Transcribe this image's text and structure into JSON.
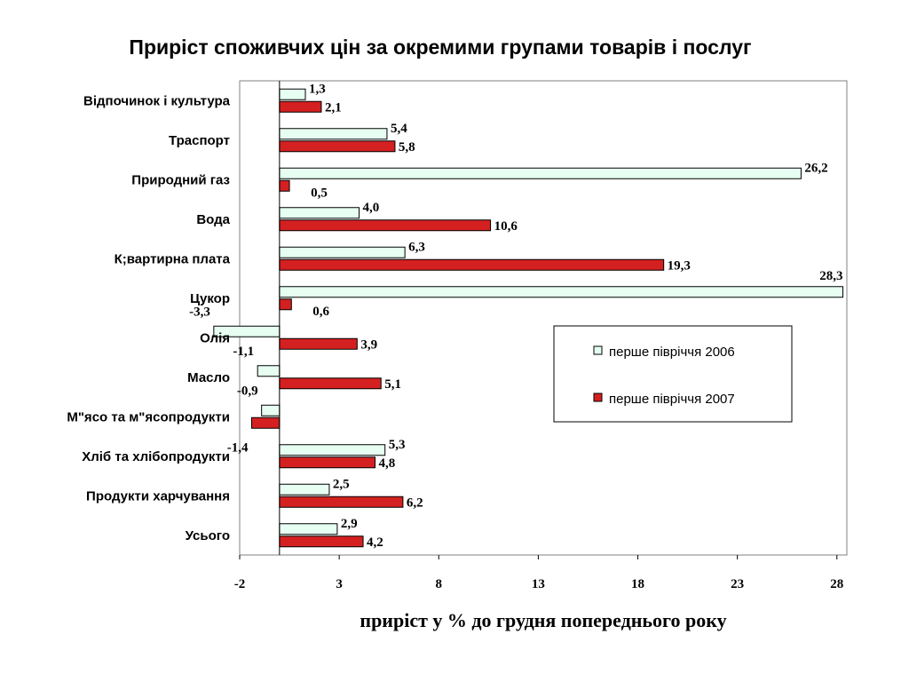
{
  "chart_data": {
    "type": "bar",
    "orientation": "horizontal",
    "title": "Приріст споживчих цін за окремими групами товарів і послуг",
    "xlabel": "приріст у % до грудня попереднього року",
    "xlim": [
      -2,
      28.5
    ],
    "xticks": [
      -2,
      3,
      8,
      13,
      18,
      23,
      28
    ],
    "grid": false,
    "legend_position": "right",
    "categories": [
      "Відпочинок і культура",
      "Траспорт",
      "Природний газ",
      "Вода",
      "К;вартирна плата",
      "Цукор",
      "Олія",
      "Масло",
      "М\"ясо та м\"ясопродукти",
      "Хліб  та хлібопродукти",
      "Продукти харчування",
      "Усього"
    ],
    "series": [
      {
        "name": "перше півріччя 2006",
        "color": "#e6fff2",
        "values": [
          1.3,
          5.4,
          26.2,
          4.0,
          6.3,
          28.3,
          -3.3,
          -1.1,
          -0.9,
          5.3,
          2.5,
          2.9
        ],
        "labels": [
          "1,3",
          "5,4",
          "26,2",
          "4,0",
          "6,3",
          "28,3",
          "-3,3",
          "-1,1",
          "-0,9",
          "5,3",
          "2,5",
          "2,9"
        ]
      },
      {
        "name": "перше півріччя 2007",
        "color": "#d42020",
        "values": [
          2.1,
          5.8,
          0.5,
          10.6,
          19.3,
          0.6,
          3.9,
          5.1,
          -1.4,
          4.8,
          6.2,
          4.2
        ],
        "labels": [
          "2,1",
          "5,8",
          "0,5",
          "10,6",
          "19,3",
          "0,6",
          "3,9",
          "5,1",
          "-1,4",
          "4,8",
          "6,2",
          "4,2"
        ]
      }
    ]
  }
}
